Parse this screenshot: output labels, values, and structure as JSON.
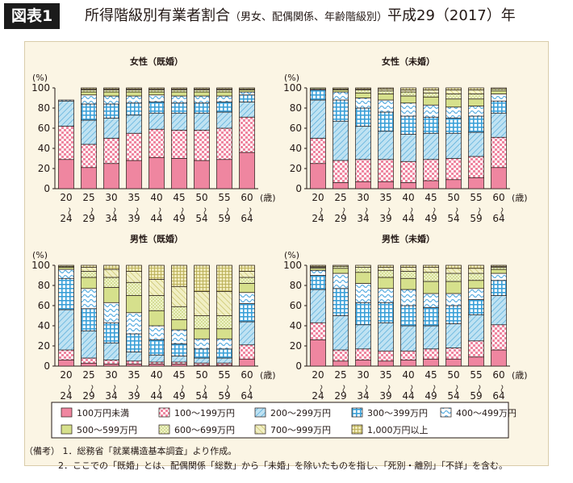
{
  "header": {
    "badge": "図表1",
    "title": "所得階級別有業者割合",
    "subtitle": "（男女、配偶関係、年齢階級別）",
    "year": "平成29（2017）年"
  },
  "colors": {
    "pink": "#ef86a0",
    "lightblue": "#bfe2f2",
    "blue": "#3aa0d8",
    "green": "#d6e08c",
    "khaki": "#d8d07a",
    "cream": "#fbf5e4"
  },
  "chart_data": {
    "type": "bar",
    "stacked": true,
    "panel_order": [
      "female_married",
      "female_unmarried",
      "male_married",
      "male_unmarried"
    ],
    "ylim": [
      0,
      100
    ],
    "y_ticks": [
      0,
      20,
      40,
      60,
      80,
      100
    ],
    "y_unit": "(%)",
    "x_unit": "(歳)",
    "categories": [
      [
        "20",
        "24"
      ],
      [
        "25",
        "29"
      ],
      [
        "30",
        "34"
      ],
      [
        "35",
        "39"
      ],
      [
        "40",
        "44"
      ],
      [
        "45",
        "49"
      ],
      [
        "50",
        "54"
      ],
      [
        "55",
        "59"
      ],
      [
        "60",
        "64"
      ]
    ],
    "series": [
      {
        "name": "100万円未満",
        "fill": "pink-solid",
        "color": "#ef86a0"
      },
      {
        "name": "100～199万円",
        "fill": "pink-check",
        "color": "#ef86a0"
      },
      {
        "name": "200～299万円",
        "fill": "blue-diag",
        "color": "#6ab7e0"
      },
      {
        "name": "300～399万円",
        "fill": "blue-grid",
        "color": "#3aa0d8"
      },
      {
        "name": "400～499万円",
        "fill": "blue-wave",
        "color": "#6ab7e0"
      },
      {
        "name": "500～599万円",
        "fill": "green-solid",
        "color": "#d6e08c"
      },
      {
        "name": "600～699万円",
        "fill": "green-dots",
        "color": "#c9d66f"
      },
      {
        "name": "700～999万円",
        "fill": "green-diag",
        "color": "#c9c56a"
      },
      {
        "name": "1,000万円以上",
        "fill": "khaki-grid",
        "color": "#d0c67a"
      }
    ],
    "panels": {
      "female_married": {
        "title": "女性（既婚）",
        "values": [
          [
            29,
            33,
            25,
            1,
            0,
            0,
            0,
            0,
            0
          ],
          [
            21,
            23,
            24,
            16,
            9,
            3,
            2,
            1,
            1
          ],
          [
            25,
            25,
            20,
            14,
            8,
            4,
            2,
            1,
            1
          ],
          [
            28,
            27,
            18,
            12,
            7,
            4,
            2,
            1,
            1
          ],
          [
            31,
            28,
            16,
            11,
            7,
            3,
            2,
            1,
            1
          ],
          [
            30,
            28,
            17,
            10,
            7,
            4,
            2,
            1,
            1
          ],
          [
            28,
            30,
            17,
            10,
            7,
            4,
            2,
            1,
            1
          ],
          [
            29,
            31,
            16,
            10,
            6,
            4,
            2,
            1,
            1
          ],
          [
            36,
            35,
            15,
            7,
            3,
            2,
            1,
            1,
            0
          ]
        ]
      },
      "female_unmarried": {
        "title": "女性（未婚）",
        "values": [
          [
            25,
            25,
            38,
            10,
            1,
            1,
            0,
            0,
            0
          ],
          [
            6,
            22,
            39,
            21,
            8,
            2,
            1,
            1,
            0
          ],
          [
            7,
            22,
            33,
            18,
            10,
            5,
            3,
            1,
            1
          ],
          [
            7,
            22,
            28,
            19,
            12,
            6,
            3,
            2,
            1
          ],
          [
            6,
            21,
            27,
            18,
            13,
            7,
            4,
            2,
            2
          ],
          [
            8,
            21,
            26,
            16,
            12,
            8,
            4,
            3,
            2
          ],
          [
            9,
            21,
            25,
            15,
            11,
            8,
            5,
            4,
            2
          ],
          [
            11,
            21,
            24,
            16,
            10,
            7,
            5,
            4,
            2
          ],
          [
            21,
            30,
            24,
            12,
            7,
            3,
            2,
            1,
            0
          ]
        ]
      },
      "male_married": {
        "title": "男性（既婚）",
        "values": [
          [
            6,
            10,
            40,
            31,
            9,
            2,
            1,
            1,
            0
          ],
          [
            3,
            5,
            27,
            22,
            20,
            11,
            6,
            4,
            2
          ],
          [
            2,
            4,
            17,
            20,
            20,
            15,
            10,
            8,
            4
          ],
          [
            2,
            3,
            9,
            18,
            21,
            17,
            13,
            11,
            6
          ],
          [
            2,
            2,
            7,
            15,
            14,
            15,
            15,
            16,
            14
          ],
          [
            2,
            2,
            6,
            12,
            14,
            10,
            13,
            20,
            21
          ],
          [
            1,
            2,
            5,
            9,
            10,
            10,
            13,
            24,
            26
          ],
          [
            1,
            2,
            5,
            9,
            10,
            10,
            13,
            24,
            26
          ],
          [
            7,
            14,
            23,
            18,
            11,
            9,
            6,
            6,
            6
          ]
        ]
      },
      "male_unmarried": {
        "title": "男性（未婚）",
        "values": [
          [
            26,
            17,
            33,
            14,
            5,
            2,
            1,
            1,
            1
          ],
          [
            5,
            11,
            34,
            27,
            15,
            5,
            2,
            1,
            0
          ],
          [
            6,
            11,
            24,
            22,
            19,
            11,
            5,
            2,
            0
          ],
          [
            5,
            10,
            28,
            20,
            14,
            11,
            7,
            3,
            2
          ],
          [
            6,
            9,
            25,
            20,
            16,
            11,
            7,
            4,
            2
          ],
          [
            7,
            10,
            23,
            18,
            14,
            12,
            9,
            5,
            2
          ],
          [
            7,
            11,
            24,
            18,
            12,
            12,
            8,
            5,
            3
          ],
          [
            9,
            16,
            26,
            15,
            11,
            8,
            7,
            5,
            3
          ],
          [
            16,
            25,
            29,
            15,
            7,
            4,
            2,
            1,
            1
          ]
        ]
      }
    }
  },
  "notes": {
    "line1": "（備考） 1．総務省「就業構造基本調査」より作成。",
    "line2": "2．ここでの「既婚」とは、配偶関係「総数」から「未婚」を除いたものを指し、「死別・離別」「不詳」を含む。"
  }
}
